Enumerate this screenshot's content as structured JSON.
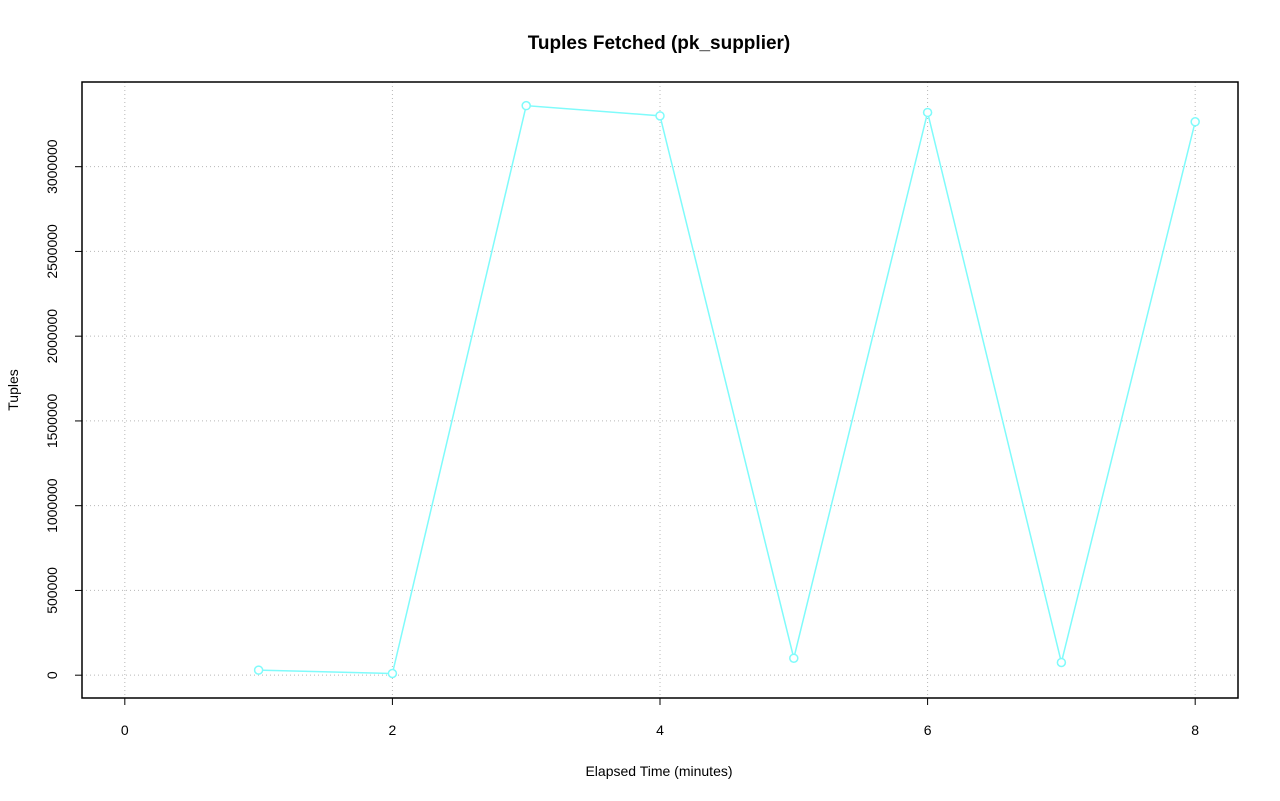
{
  "chart_data": {
    "type": "line",
    "title": "Tuples Fetched (pk_supplier)",
    "x_label": "Elapsed Time (minutes)",
    "y_label": "Tuples",
    "x": [
      1,
      2,
      3,
      4,
      5,
      6,
      7,
      8
    ],
    "series": [
      {
        "name": "pk_supplier",
        "color": "#7ffbfb",
        "values": [
          30000,
          10000,
          3360000,
          3300000,
          100000,
          3320000,
          75000,
          3265000
        ]
      }
    ],
    "xlim": [
      -0.32,
      8.32
    ],
    "xticks": [
      0,
      2,
      4,
      6,
      8
    ],
    "ylim": [
      -134600,
      3499600
    ],
    "yticks": [
      0,
      500000,
      1000000,
      1500000,
      2000000,
      2500000,
      3000000
    ],
    "grid": true
  }
}
